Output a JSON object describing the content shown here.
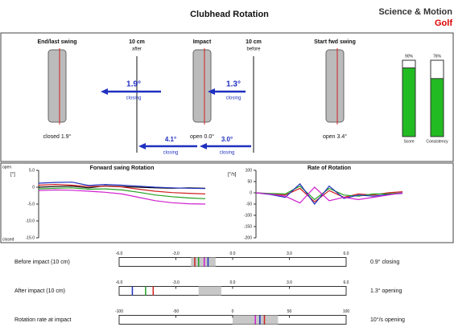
{
  "header": {
    "title": "Clubhead Rotation",
    "brand": "Science & Motion",
    "brand_sub": "Golf"
  },
  "positions": [
    {
      "label": "End/last swing",
      "angle": "closed 1.9°"
    },
    {
      "label": "10 cm",
      "sub": "after"
    },
    {
      "label": "Impact",
      "angle": "open 0.0°"
    },
    {
      "label": "10 cm",
      "sub": "before"
    },
    {
      "label": "Start fwd swing",
      "angle": "open 3.4°"
    }
  ],
  "arrows": [
    {
      "value": "1.9°",
      "text": "closing"
    },
    {
      "value": "1.3°",
      "text": "closing"
    },
    {
      "value": "4.1°",
      "text": "closing"
    },
    {
      "value": "3.0°",
      "text": "closing"
    }
  ],
  "scores": [
    {
      "name": "Score",
      "value": 90,
      "label": "90%"
    },
    {
      "name": "Consistency",
      "value": 76,
      "label": "76%"
    }
  ],
  "charts": [
    {
      "title": "Forward swing Rotation",
      "unit": "[°]",
      "top": "open",
      "bottom": "closed",
      "ylim": [
        -15,
        5
      ],
      "yticks": [
        {
          "value": 5,
          "label": "5.0"
        },
        0,
        {
          "value": -5,
          "label": "-5.0"
        },
        {
          "value": -10,
          "label": "-10.0"
        },
        {
          "value": -15,
          "label": "-15.0"
        }
      ],
      "x": [
        0,
        1,
        2,
        3,
        4,
        5,
        6,
        7,
        8,
        9,
        10
      ],
      "series": [
        {
          "color": "#000000",
          "values": [
            0,
            0.2,
            0.3,
            -0.2,
            0.4,
            0.2,
            0,
            -0.2,
            -0.3,
            -0.2,
            -0.3
          ]
        },
        {
          "color": "#d02020",
          "values": [
            0.6,
            0.8,
            0.6,
            0.2,
            0.3,
            0.1,
            -0.6,
            -1.2,
            -1.6,
            -1.8,
            -2
          ]
        },
        {
          "color": "#20a020",
          "values": [
            -0.5,
            -0.3,
            -0.2,
            -0.6,
            -0.5,
            -0.8,
            -1.5,
            -2.3,
            -2.8,
            -3.2,
            -3.4
          ]
        },
        {
          "color": "#2030c0",
          "values": [
            1.2,
            1.4,
            1.5,
            0.5,
            0.8,
            0.6,
            0.3,
            0,
            -0.2,
            -0.3,
            -0.4
          ]
        },
        {
          "color": "#d020d0",
          "values": [
            -1,
            -0.8,
            -0.9,
            -1.2,
            -1.5,
            -2,
            -3,
            -4,
            -4.6,
            -4.9,
            -5
          ]
        }
      ]
    },
    {
      "title": "Rate of Rotation",
      "unit": "[°/s]",
      "ylim": [
        -200,
        100
      ],
      "yticks": [
        100,
        50,
        0,
        -50,
        -100,
        -150,
        -200
      ],
      "x": [
        0,
        1,
        2,
        3,
        4,
        5,
        6,
        7,
        8,
        9,
        10
      ],
      "series": [
        {
          "color": "#d02020",
          "values": [
            0,
            -5,
            -10,
            20,
            -40,
            10,
            -20,
            -5,
            -10,
            0,
            5
          ]
        },
        {
          "color": "#20a020",
          "values": [
            0,
            -3,
            -5,
            30,
            -30,
            20,
            -10,
            -15,
            -5,
            -5,
            0
          ]
        },
        {
          "color": "#2030c0",
          "values": [
            0,
            -8,
            -20,
            40,
            -50,
            30,
            -25,
            -10,
            -15,
            -8,
            -2
          ]
        },
        {
          "color": "#d020d0",
          "values": [
            0,
            -6,
            -15,
            -45,
            25,
            -35,
            -20,
            -30,
            -20,
            -10,
            0
          ]
        }
      ]
    }
  ],
  "scales": [
    {
      "label": "Before impact (10 cm)",
      "result": "0.9° closing",
      "lim": [
        -6,
        6
      ],
      "ticks": [
        {
          "value": -6,
          "label": "-6.0"
        },
        {
          "value": -3,
          "label": "-3.0"
        },
        {
          "value": 0,
          "label": "0.0"
        },
        {
          "value": 3,
          "label": "3.0"
        },
        {
          "value": 6,
          "label": "6.0"
        }
      ],
      "shade": [
        -2.2,
        -0.9
      ],
      "markers": [
        {
          "value": -2,
          "color": "#d02020"
        },
        {
          "value": -1.8,
          "color": "#20a020"
        },
        {
          "value": -1.5,
          "color": "#d020d0"
        },
        {
          "value": -1.3,
          "color": "#2030c0"
        }
      ]
    },
    {
      "label": "After impact (10 cm)",
      "result": "1.3° opening",
      "lim": [
        -6,
        6
      ],
      "ticks": [
        {
          "value": -6,
          "label": "-6.0"
        },
        {
          "value": -3,
          "label": "-3.0"
        },
        {
          "value": 0,
          "label": "0.0"
        },
        {
          "value": 3,
          "label": "3.0"
        },
        {
          "value": 6,
          "label": "6.0"
        }
      ],
      "shade": [
        -1.8,
        -0.6
      ],
      "markers": [
        {
          "value": -5.3,
          "color": "#2030c0"
        },
        {
          "value": -4.6,
          "color": "#20a020"
        },
        {
          "value": -4.2,
          "color": "#d02020"
        }
      ]
    },
    {
      "label": "Rotation rate at impact",
      "result": "10°/s opening",
      "lim": [
        -100,
        100
      ],
      "ticks": [
        -100,
        -50,
        0,
        50,
        100
      ],
      "shade": [
        0,
        40
      ],
      "markers": [
        {
          "value": 20,
          "color": "#d020d0"
        },
        {
          "value": 24,
          "color": "#2030c0"
        },
        {
          "value": 28,
          "color": "#d02020"
        }
      ]
    }
  ]
}
